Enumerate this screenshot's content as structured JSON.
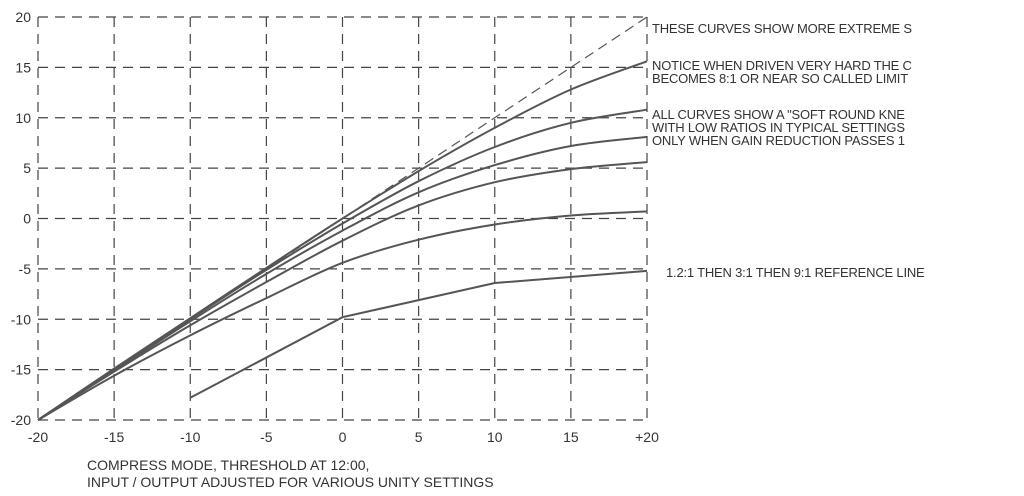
{
  "chart_data": {
    "type": "line",
    "title": "",
    "xlabel": "",
    "ylabel": "",
    "xlim": [
      -20,
      20
    ],
    "ylim": [
      -20,
      20
    ],
    "grid": "dashed",
    "x_ticks": [
      {
        "v": -20,
        "label": "-20"
      },
      {
        "v": -15,
        "label": "-15"
      },
      {
        "v": -10,
        "label": "-10"
      },
      {
        "v": -5,
        "label": "-5"
      },
      {
        "v": 0,
        "label": "0"
      },
      {
        "v": 5,
        "label": "5"
      },
      {
        "v": 10,
        "label": "10"
      },
      {
        "v": 15,
        "label": "15"
      },
      {
        "v": 20,
        "label": "+20"
      }
    ],
    "y_ticks": [
      {
        "v": 20,
        "label": "20"
      },
      {
        "v": 15,
        "label": "15"
      },
      {
        "v": 10,
        "label": "10"
      },
      {
        "v": 5,
        "label": "5"
      },
      {
        "v": 0,
        "label": "0"
      },
      {
        "v": -5,
        "label": "-5"
      },
      {
        "v": -10,
        "label": "-10"
      },
      {
        "v": -15,
        "label": "-15"
      },
      {
        "v": -20,
        "label": "-20"
      }
    ],
    "series": [
      {
        "style": "dashed",
        "x": [
          -20,
          20
        ],
        "y": [
          -20,
          20
        ]
      },
      {
        "style": "solid",
        "x": [
          -20,
          -15,
          -10,
          -5,
          0,
          5,
          10,
          15,
          20
        ],
        "y": [
          -20,
          -14.9,
          -9.9,
          -4.9,
          0,
          4.7,
          9,
          12.8,
          15.6
        ]
      },
      {
        "style": "solid",
        "x": [
          -20,
          -15,
          -10,
          -5,
          0,
          5,
          10,
          15,
          20
        ],
        "y": [
          -20,
          -15,
          -10,
          -5.1,
          -0.5,
          3.7,
          7.1,
          9.5,
          10.8
        ]
      },
      {
        "style": "solid",
        "x": [
          -20,
          -15,
          -10,
          -5,
          0,
          5,
          10,
          15,
          20
        ],
        "y": [
          -20,
          -15.1,
          -10.2,
          -5.5,
          -1.2,
          2.6,
          5.3,
          7.2,
          8.1
        ]
      },
      {
        "style": "solid",
        "x": [
          -20,
          -15,
          -10,
          -5,
          0,
          5,
          10,
          15,
          20
        ],
        "y": [
          -20,
          -15.2,
          -10.6,
          -6.3,
          -2.2,
          1.3,
          3.6,
          4.9,
          5.6
        ]
      },
      {
        "style": "solid",
        "x": [
          -20,
          -15,
          -10,
          -5,
          0,
          5,
          10,
          15,
          20
        ],
        "y": [
          -20,
          -15.6,
          -11.6,
          -7.9,
          -4.4,
          -2.1,
          -0.6,
          0.3,
          0.7
        ]
      },
      {
        "style": "solid",
        "x": [
          -10,
          0,
          10,
          20
        ],
        "y": [
          -17.8,
          -9.8,
          -6.4,
          -5.2
        ]
      }
    ],
    "annotations": [
      {
        "id": "a1",
        "text": "THESE CURVES SHOW MORE EXTREME S"
      },
      {
        "id": "a2a",
        "text": "NOTICE WHEN DRIVEN VERY HARD THE C"
      },
      {
        "id": "a2b",
        "text": "BECOMES  8:1 OR NEAR SO CALLED LIMIT"
      },
      {
        "id": "a3a",
        "text": "ALL CURVES SHOW A \"SOFT ROUND KNE"
      },
      {
        "id": "a3b",
        "text": "WITH LOW RATIOS IN TYPICAL SETTINGS"
      },
      {
        "id": "a3c",
        "text": "ONLY WHEN  GAIN REDUCTION PASSES 1"
      },
      {
        "id": "a4",
        "text": "1.2:1 THEN 3:1 THEN 9:1 REFERENCE LINE"
      }
    ],
    "caption": [
      "COMPRESS MODE, THRESHOLD AT 12:00,",
      "INPUT / OUTPUT ADJUSTED FOR VARIOUS UNITY SETTINGS"
    ]
  }
}
